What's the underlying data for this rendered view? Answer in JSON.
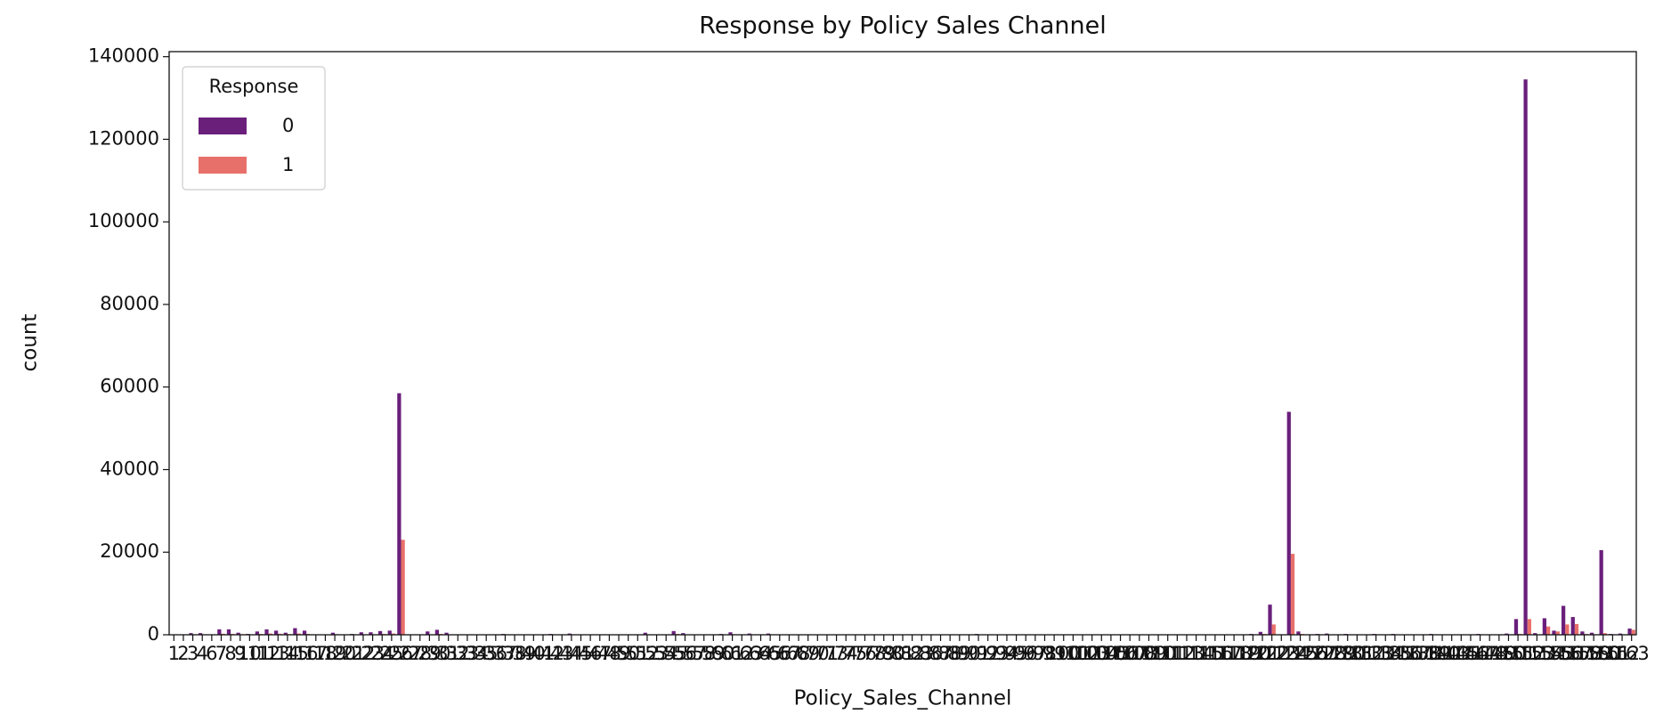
{
  "chart_data": {
    "type": "bar",
    "title": "Response by Policy Sales Channel",
    "x_label": "Policy_Sales_Channel",
    "y_label": "count",
    "categories": [
      1,
      2,
      3,
      4,
      6,
      7,
      8,
      9,
      10,
      11,
      12,
      13,
      14,
      15,
      16,
      17,
      18,
      19,
      20,
      21,
      22,
      23,
      24,
      25,
      26,
      27,
      28,
      29,
      30,
      31,
      32,
      33,
      34,
      35,
      36,
      37,
      38,
      39,
      40,
      41,
      42,
      43,
      44,
      45,
      46,
      47,
      48,
      49,
      50,
      51,
      52,
      53,
      54,
      55,
      56,
      57,
      58,
      59,
      60,
      61,
      62,
      63,
      64,
      65,
      66,
      67,
      68,
      69,
      70,
      71,
      73,
      74,
      75,
      76,
      78,
      79,
      80,
      81,
      82,
      83,
      86,
      87,
      88,
      89,
      90,
      91,
      92,
      93,
      94,
      95,
      96,
      97,
      98,
      99,
      100,
      101,
      102,
      103,
      104,
      105,
      106,
      107,
      108,
      109,
      110,
      111,
      112,
      113,
      114,
      115,
      116,
      117,
      118,
      119,
      120,
      121,
      122,
      123,
      124,
      125,
      126,
      127,
      128,
      129,
      130,
      131,
      132,
      133,
      134,
      135,
      136,
      137,
      138,
      139,
      140,
      143,
      145,
      146,
      147,
      148,
      149,
      150,
      151,
      152,
      153,
      154,
      155,
      156,
      157,
      158,
      159,
      160,
      161,
      162,
      163
    ],
    "legend_title": "Response",
    "legend_position": "upper left",
    "series": [
      {
        "name": "0",
        "color": "#6a1f7b",
        "values": [
          100,
          4,
          400,
          400,
          50,
          1300,
          1300,
          500,
          200,
          800,
          1300,
          1000,
          500,
          1600,
          1000,
          10,
          20,
          500,
          8,
          200,
          600,
          600,
          900,
          1000,
          58500,
          100,
          5,
          800,
          1200,
          500,
          100,
          50,
          10,
          100,
          30,
          200,
          10,
          30,
          5,
          3,
          200,
          5,
          300,
          50,
          5,
          100,
          50,
          100,
          20,
          10,
          500,
          50,
          30,
          900,
          400,
          50,
          5,
          1,
          200,
          600,
          10,
          300,
          50,
          300,
          30,
          5,
          2,
          5,
          2,
          3,
          100,
          5,
          3,
          8,
          100,
          3,
          100,
          5,
          5,
          50,
          100,
          10,
          30,
          50,
          20,
          200,
          50,
          100,
          50,
          20,
          5,
          10,
          30,
          5,
          100,
          5,
          5,
          3,
          100,
          5,
          5,
          100,
          5,
          100,
          30,
          100,
          10,
          100,
          5,
          10,
          20,
          5,
          10,
          30,
          200,
          700,
          7300,
          20,
          54000,
          800,
          50,
          200,
          300,
          50,
          200,
          10,
          100,
          200,
          5,
          200,
          50,
          100,
          5,
          200,
          50,
          30,
          100,
          30,
          200,
          100,
          5,
          300,
          3800,
          134500,
          400,
          4000,
          1000,
          7000,
          4300,
          800,
          500,
          20500,
          200,
          300,
          1500
        ]
      },
      {
        "name": "1",
        "color": "#e8706a",
        "values": [
          10,
          0,
          120,
          100,
          5,
          250,
          200,
          150,
          60,
          200,
          300,
          250,
          150,
          300,
          200,
          1,
          3,
          150,
          2,
          20,
          80,
          120,
          200,
          300,
          23000,
          30,
          1,
          100,
          200,
          100,
          20,
          10,
          2,
          10,
          5,
          40,
          1,
          5,
          1,
          0,
          20,
          0,
          40,
          10,
          1,
          20,
          5,
          10,
          2,
          1,
          100,
          10,
          5,
          200,
          100,
          5,
          1,
          0,
          30,
          120,
          1,
          40,
          5,
          50,
          2,
          0,
          0,
          1,
          0,
          0,
          10,
          0,
          0,
          1,
          10,
          0,
          20,
          0,
          0,
          5,
          20,
          1,
          2,
          5,
          2,
          30,
          5,
          10,
          5,
          1,
          0,
          1,
          3,
          0,
          10,
          0,
          0,
          0,
          10,
          0,
          0,
          10,
          0,
          10,
          2,
          10,
          1,
          10,
          0,
          1,
          2,
          0,
          1,
          3,
          30,
          200,
          2500,
          2,
          19600,
          200,
          5,
          30,
          50,
          5,
          20,
          1,
          10,
          20,
          0,
          30,
          5,
          10,
          0,
          20,
          5,
          3,
          10,
          3,
          20,
          10,
          0,
          50,
          200,
          3800,
          100,
          2000,
          800,
          2500,
          2600,
          200,
          100,
          400,
          30,
          50,
          1200
        ]
      }
    ],
    "ylim": [
      0,
      141225
    ],
    "yticks": [
      0,
      20000,
      40000,
      60000,
      80000,
      100000,
      120000,
      140000
    ]
  }
}
